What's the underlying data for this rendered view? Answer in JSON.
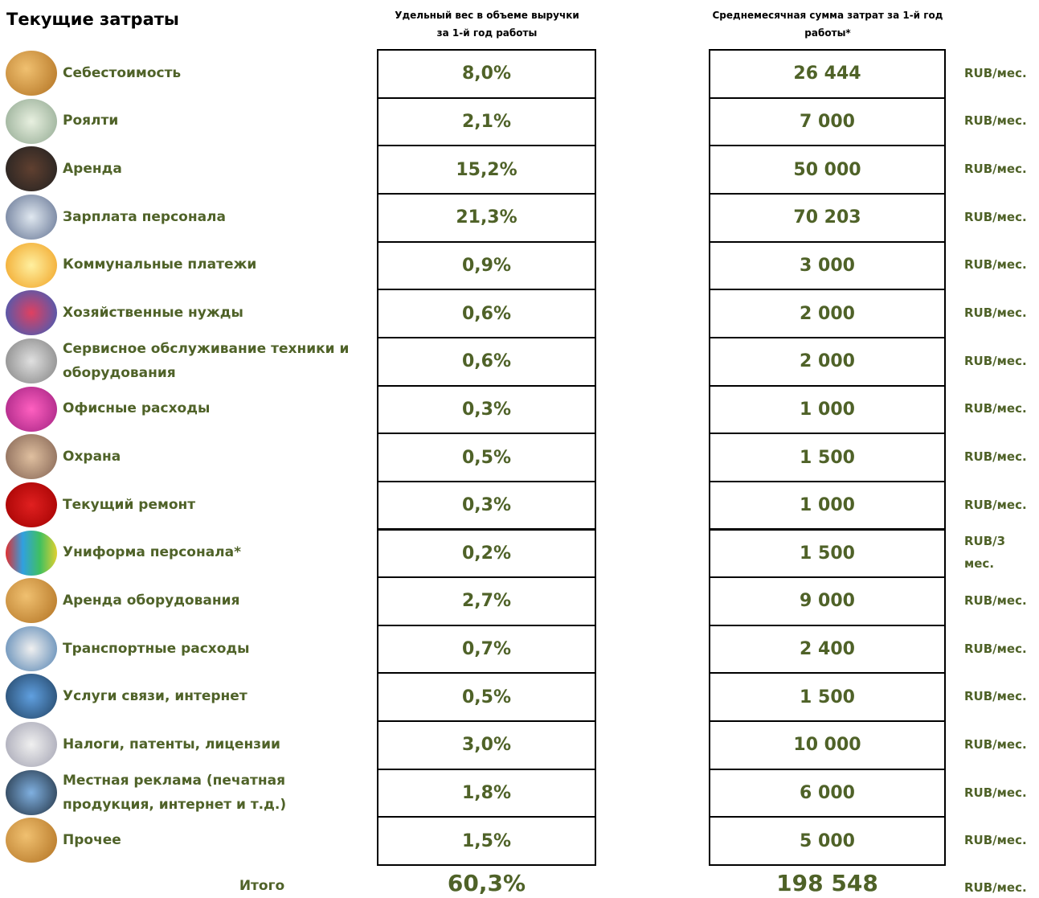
{
  "header": {
    "title": "Текущие затраты",
    "share_column": "Удельный вес в объеме выручки за 1-й год работы",
    "amount_column": "Среднемесячная сумма затрат за 1-й год работы*"
  },
  "table": {
    "rows": [
      [
        "Себестоимость",
        "8,0%",
        "26 444",
        "RUB/мес."
      ],
      [
        "Роялти",
        "2,1%",
        "7 000",
        "RUB/мес."
      ],
      [
        "Аренда",
        "15,2%",
        "50 000",
        "RUB/мес."
      ],
      [
        "Зарплата персонала",
        "21,3%",
        "70 203",
        "RUB/мес."
      ],
      [
        "Коммунальные платежи",
        "0,9%",
        "3 000",
        "RUB/мес."
      ],
      [
        "Хозяйственные нужды",
        "0,6%",
        "2 000",
        "RUB/мес."
      ],
      [
        "Сервисное обслуживание техники и оборудования",
        "0,6%",
        "2 000",
        "RUB/мес."
      ],
      [
        "Офисные расходы",
        "0,3%",
        "1 000",
        "RUB/мес."
      ],
      [
        "Охрана",
        "0,5%",
        "1 500",
        "RUB/мес."
      ],
      [
        "Текущий ремонт",
        "0,3%",
        "1 000",
        "RUB/мес."
      ],
      [
        "Униформа персонала*",
        "0,2%",
        "1 500",
        "RUB/3 мес."
      ],
      [
        "Аренда оборудования",
        "2,7%",
        "9 000",
        "RUB/мес."
      ],
      [
        "Транспортные расходы",
        "0,7%",
        "2 400",
        "RUB/мес."
      ],
      [
        "Услуги связи, интернет",
        "0,5%",
        "1 500",
        "RUB/мес."
      ],
      [
        "Налоги, патенты, лицензии",
        "3,0%",
        "10 000",
        "RUB/мес."
      ],
      [
        "Местная реклама (печатная продукция, интернет и т.д.)",
        "1,8%",
        "6 000",
        "RUB/мес."
      ],
      [
        "Прочее",
        "1,5%",
        "5 000",
        "RUB/мес."
      ]
    ],
    "total": [
      "Итого",
      "60,3%",
      "198 548",
      "RUB/мес."
    ]
  }
}
